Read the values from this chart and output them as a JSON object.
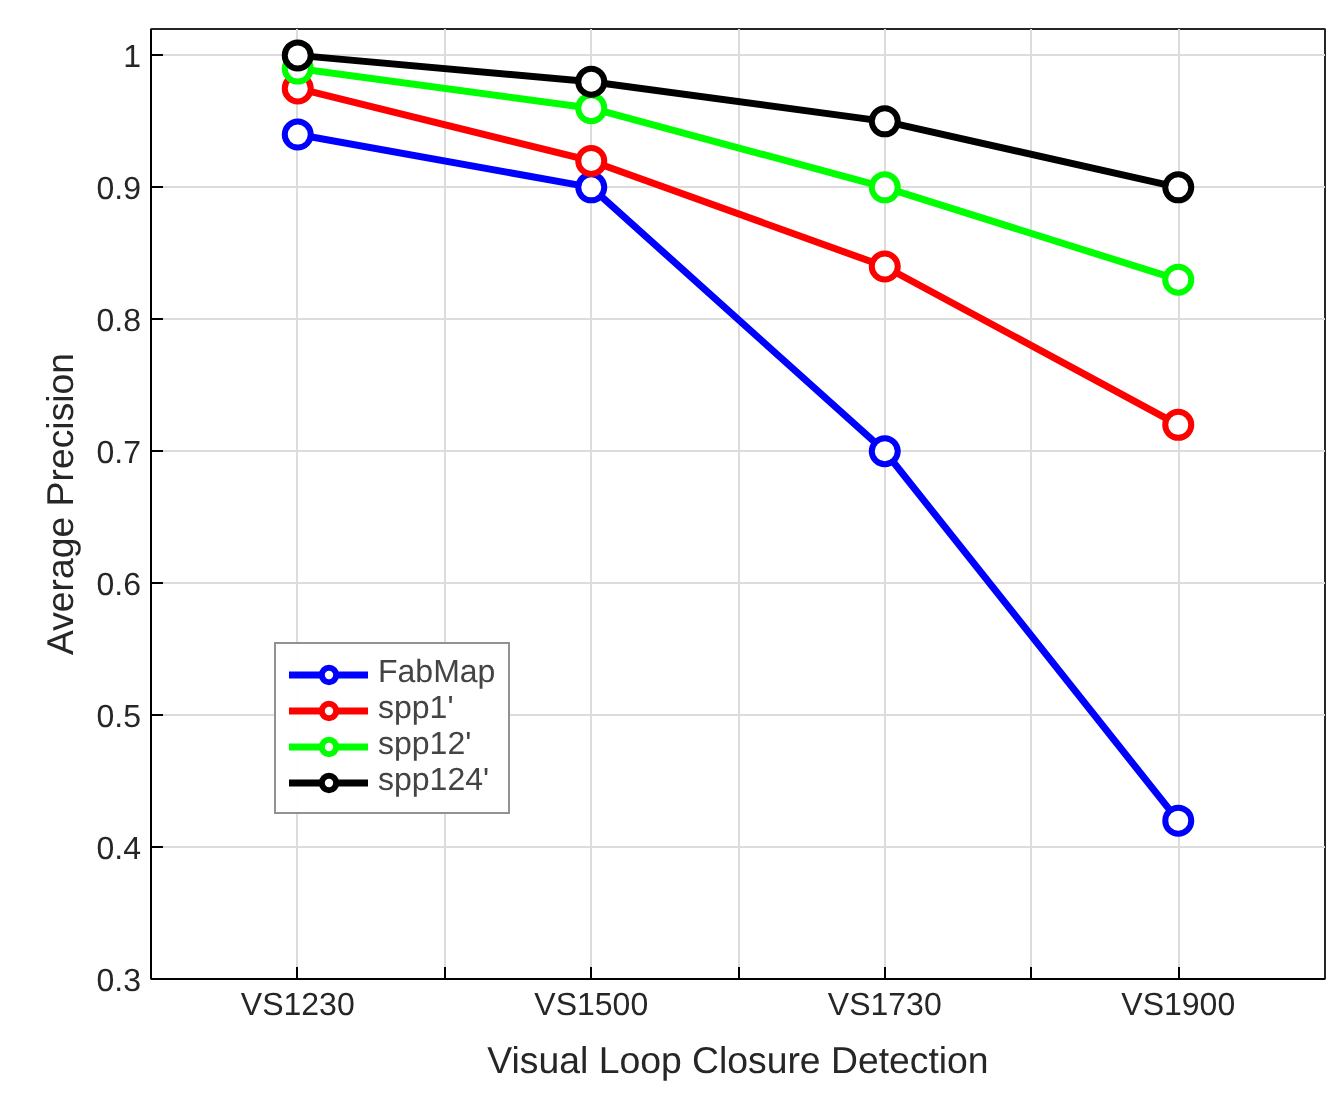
{
  "chart_data": {
    "type": "line",
    "xlabel": "Visual Loop Closure Detection",
    "ylabel": "Average Precision",
    "categories": [
      "VS1230",
      "VS1500",
      "VS1730",
      "VS1900"
    ],
    "series": [
      {
        "name": "FabMap",
        "color": "#0000ff",
        "values": [
          0.94,
          0.9,
          0.7,
          0.42
        ]
      },
      {
        "name": "spp1'",
        "color": "#ff0000",
        "values": [
          0.975,
          0.92,
          0.84,
          0.72
        ]
      },
      {
        "name": "spp12'",
        "color": "#00ff00",
        "values": [
          0.99,
          0.96,
          0.9,
          0.83
        ]
      },
      {
        "name": "spp124'",
        "color": "#000000",
        "values": [
          1.0,
          0.98,
          0.95,
          0.9
        ]
      }
    ],
    "ylim": [
      0.3,
      1.02
    ],
    "yticks": [
      0.3,
      0.4,
      0.5,
      0.6,
      0.7,
      0.8,
      0.9,
      1
    ],
    "grid": true,
    "legend": "bottom left",
    "marker": "circle",
    "line_style": "solid"
  }
}
